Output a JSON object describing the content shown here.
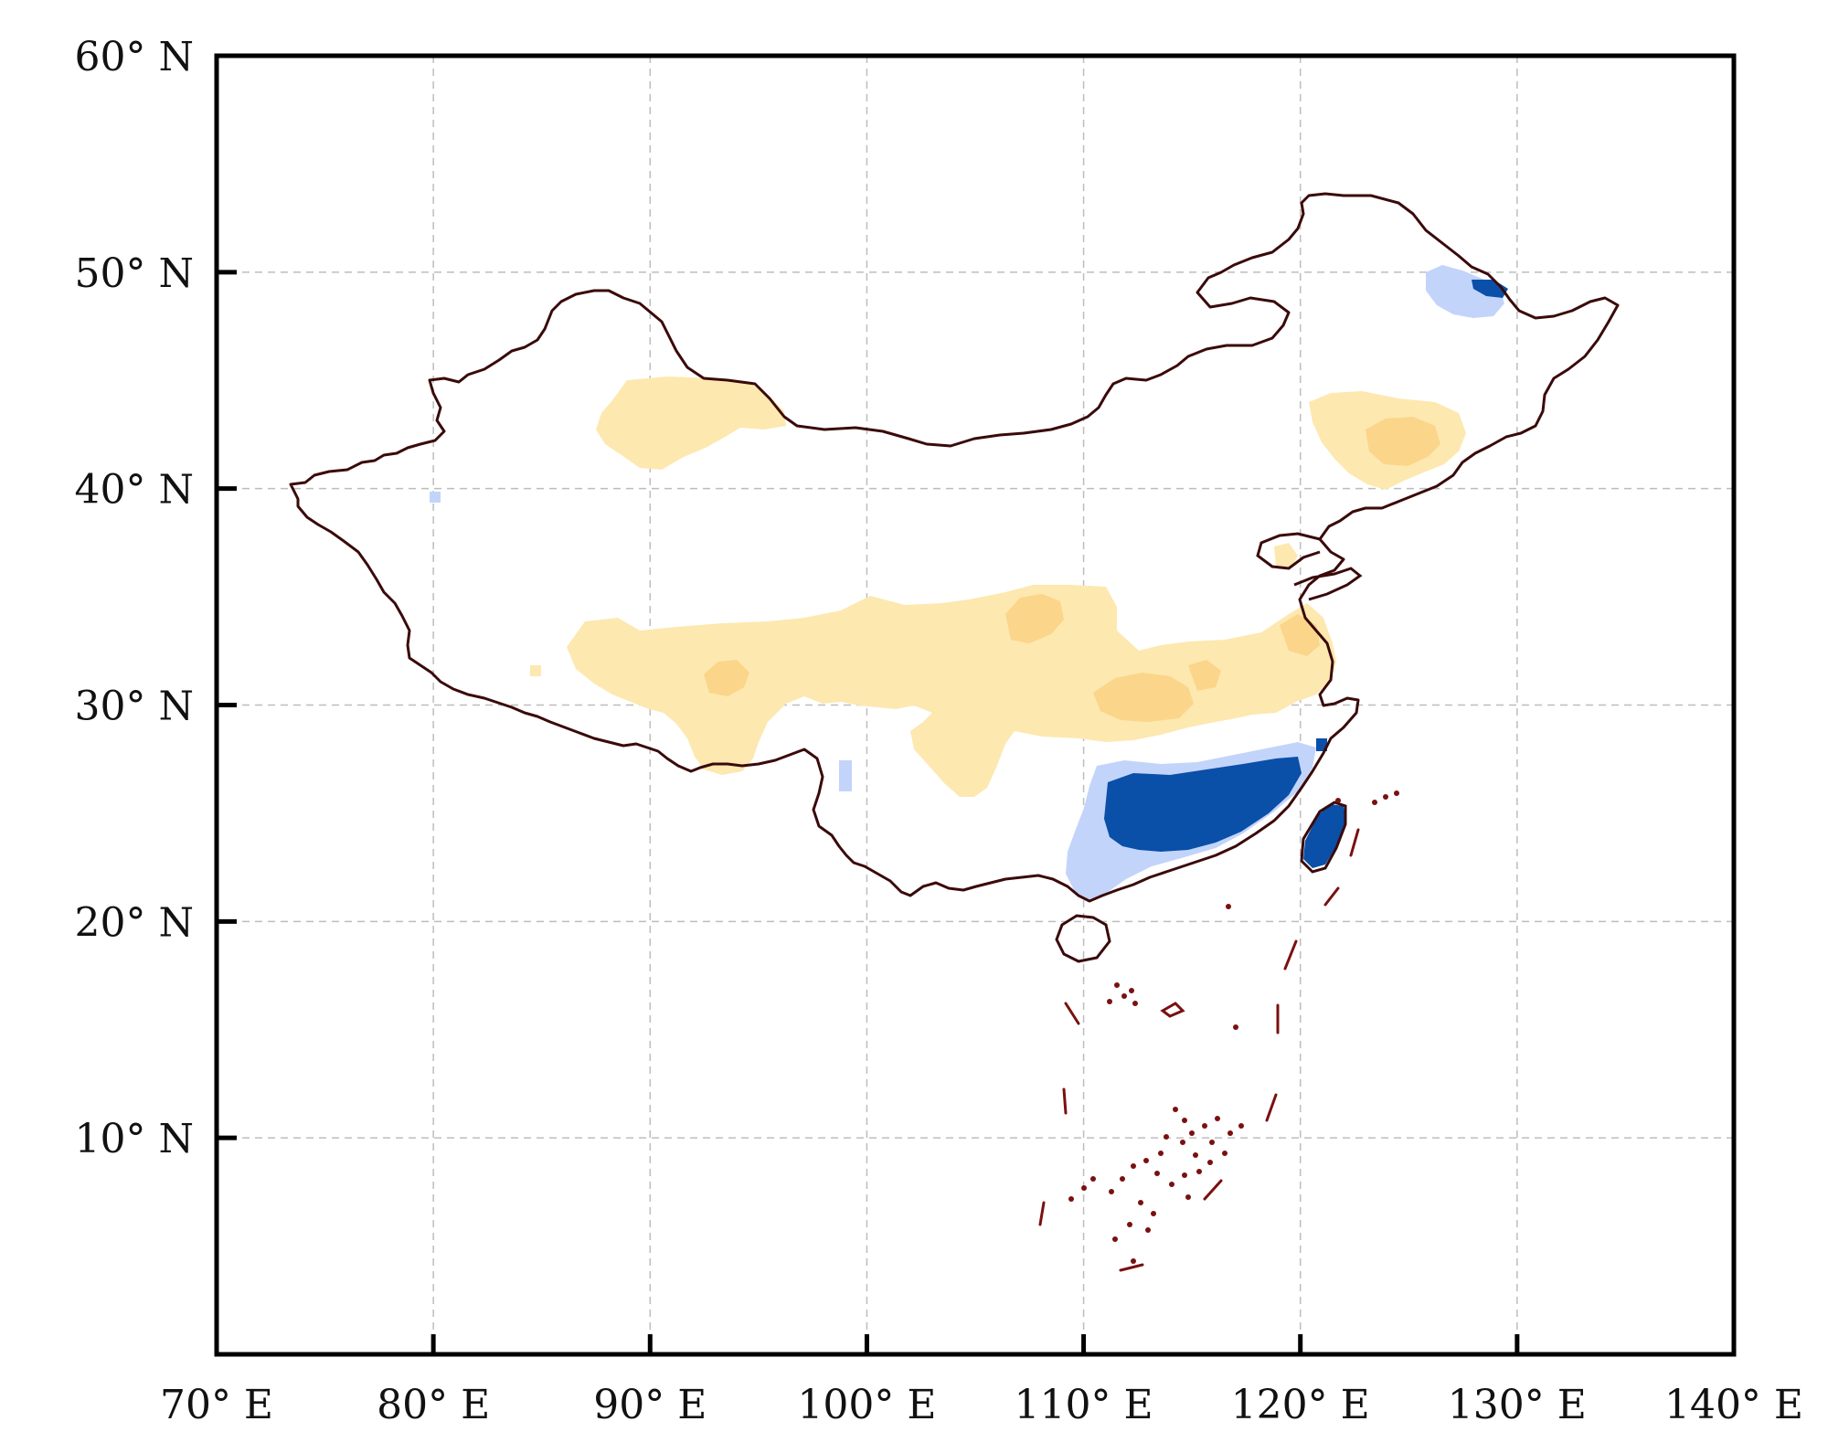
{
  "x_axis": {
    "ticks": [
      {
        "value": 70,
        "label": "70° E"
      },
      {
        "value": 80,
        "label": "80° E"
      },
      {
        "value": 90,
        "label": "90° E"
      },
      {
        "value": 100,
        "label": "100° E"
      },
      {
        "value": 110,
        "label": "110° E"
      },
      {
        "value": 120,
        "label": "120° E"
      },
      {
        "value": 130,
        "label": "130° E"
      },
      {
        "value": 140,
        "label": "140° E"
      }
    ],
    "range": [
      70,
      140
    ]
  },
  "y_axis": {
    "ticks": [
      {
        "value": 60,
        "label": "60° N"
      },
      {
        "value": 50,
        "label": "50° N"
      },
      {
        "value": 40,
        "label": "40° N"
      },
      {
        "value": 30,
        "label": "30° N"
      },
      {
        "value": 20,
        "label": "20° N"
      },
      {
        "value": 10,
        "label": "10° N"
      }
    ],
    "range": [
      0,
      60
    ]
  },
  "grid": true,
  "colors": {
    "frame": "#000000",
    "grid": "#bdbdbd",
    "border": "#3a0a0a",
    "islands": "#7a1010",
    "light_yellow": "#fde8b0",
    "mid_yellow": "#fbd58a",
    "light_blue": "#c2d4fa",
    "dark_blue": "#0a4fa8"
  },
  "shaded_regions": [
    {
      "category": "light_yellow",
      "description": "Tarim region north-west"
    },
    {
      "category": "light_yellow",
      "description": "Tibetan plateau / central belt"
    },
    {
      "category": "mid_yellow",
      "description": "central belt cores"
    },
    {
      "category": "light_yellow",
      "description": "north-east plain"
    },
    {
      "category": "mid_yellow",
      "description": "north-east core"
    },
    {
      "category": "light_blue",
      "description": "south-east margin"
    },
    {
      "category": "dark_blue",
      "description": "south-east China core"
    },
    {
      "category": "dark_blue",
      "description": "Taiwan"
    },
    {
      "category": "light_blue",
      "description": "north-east tip"
    },
    {
      "category": "dark_blue",
      "description": "north-east tip core"
    }
  ]
}
